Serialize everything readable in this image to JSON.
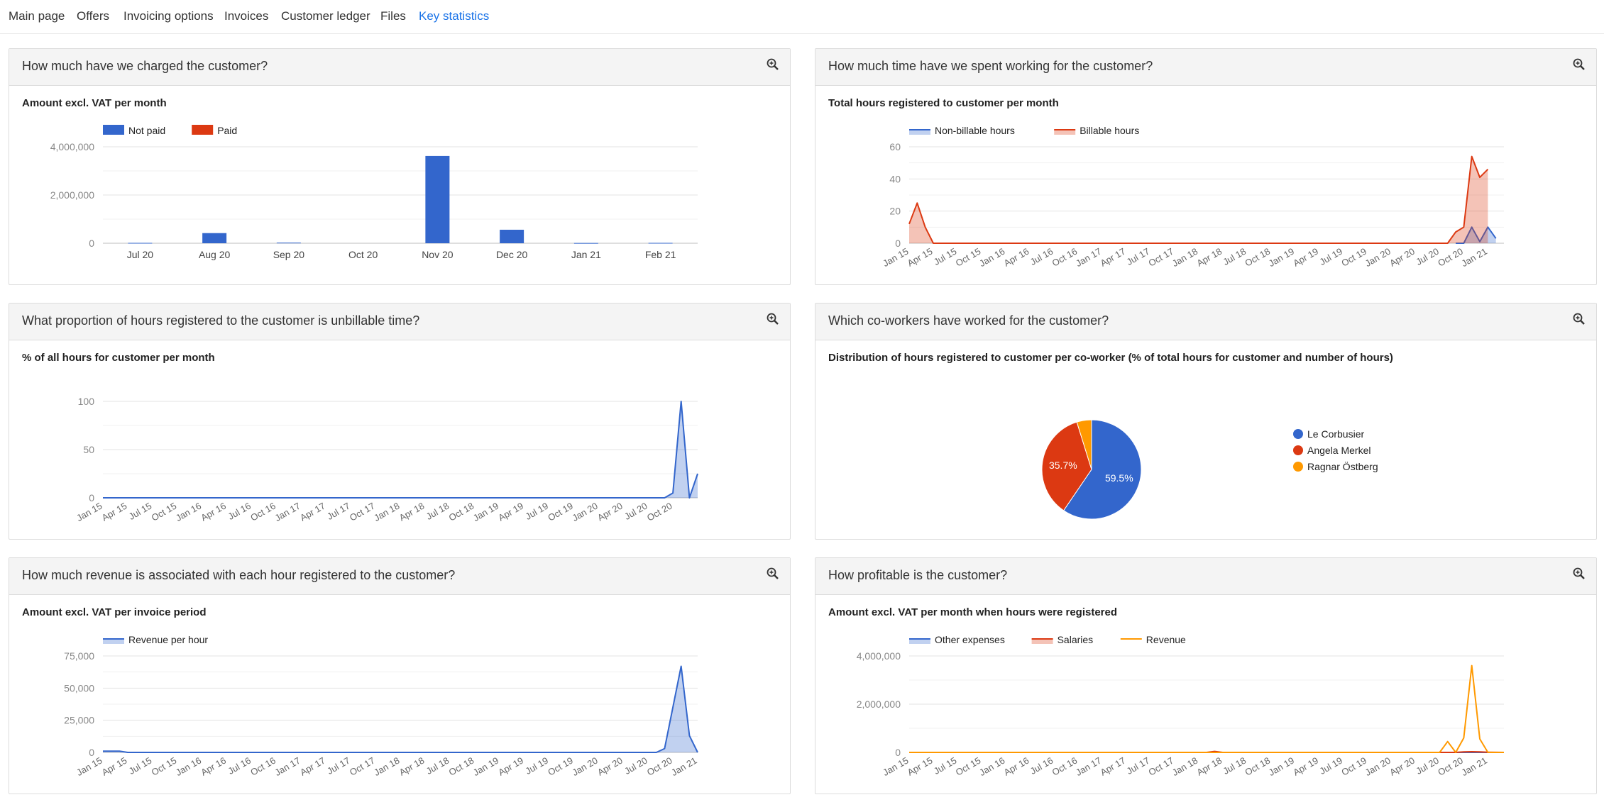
{
  "nav": {
    "items": [
      {
        "label": "Main page",
        "active": false
      },
      {
        "label": "Offers",
        "active": false
      },
      {
        "label": "Invoicing options",
        "active": false
      },
      {
        "label": "Invoices",
        "active": false
      },
      {
        "label": "Customer ledger",
        "active": false
      },
      {
        "label": "Files",
        "active": false
      },
      {
        "label": "Key statistics",
        "active": true
      }
    ]
  },
  "icons": {
    "zoom": "zoom-in-icon"
  },
  "colors": {
    "blue": "#3366cc",
    "red": "#dc3912",
    "orange": "#ff9900",
    "active_nav": "#1a73e8"
  },
  "cards": {
    "charged": {
      "title": "How much have we charged the customer?",
      "subtitle": "Amount excl. VAT per month"
    },
    "time": {
      "title": "How much time have we spent working for the customer?",
      "subtitle": "Total hours registered to customer per month"
    },
    "unbillable": {
      "title": "What proportion of hours registered to the customer is unbillable time?",
      "subtitle": "% of all hours for customer per month"
    },
    "coworkers": {
      "title": "Which co-workers have worked for the customer?",
      "subtitle": "Distribution of hours registered to customer per co-worker (% of total hours for customer and number of hours)"
    },
    "revenue_hour": {
      "title": "How much revenue is associated with each hour registered to the customer?",
      "subtitle": "Amount excl. VAT per invoice period"
    },
    "profitable": {
      "title": "How profitable is the customer?",
      "subtitle": "Amount excl. VAT per month when hours were registered"
    }
  },
  "chart_data": [
    {
      "id": "charged",
      "type": "bar",
      "stacked": true,
      "categories": [
        "Jul 20",
        "Aug 20",
        "Sep 20",
        "Oct 20",
        "Nov 20",
        "Dec 20",
        "Jan 21",
        "Feb 21"
      ],
      "series": [
        {
          "name": "Not paid",
          "color": "#3366cc",
          "values": [
            15000,
            420000,
            25000,
            0,
            3620000,
            560000,
            10000,
            15000
          ]
        },
        {
          "name": "Paid",
          "color": "#dc3912",
          "values": [
            0,
            0,
            0,
            0,
            0,
            0,
            0,
            0
          ]
        }
      ],
      "ylim": [
        0,
        4000000
      ],
      "yticks": [
        "4,000,000",
        "2,000,000",
        "0"
      ],
      "legend": "top"
    },
    {
      "id": "time",
      "type": "area",
      "xticks": [
        "Jan 15",
        "Apr 15",
        "Jul 15",
        "Oct 15",
        "Jan 16",
        "Apr 16",
        "Jul 16",
        "Oct 16",
        "Jan 17",
        "Apr 17",
        "Jul 17",
        "Oct 17",
        "Jan 18",
        "Apr 18",
        "Jul 18",
        "Oct 18",
        "Jan 19",
        "Apr 19",
        "Jul 19",
        "Oct 19",
        "Jan 20",
        "Apr 20",
        "Jul 20",
        "Oct 20",
        "Jan 21"
      ],
      "months": 75,
      "series": [
        {
          "name": "Non-billable hours",
          "color": "#3366cc",
          "points": [
            [
              68,
              0
            ],
            [
              69,
              0
            ],
            [
              70,
              10
            ],
            [
              71,
              1
            ],
            [
              72,
              10
            ],
            [
              73,
              3
            ]
          ]
        },
        {
          "name": "Billable hours",
          "color": "#dc3912",
          "points": [
            [
              0,
              12
            ],
            [
              1,
              25
            ],
            [
              2,
              10
            ],
            [
              3,
              0
            ],
            [
              67,
              0
            ],
            [
              68,
              7
            ],
            [
              69,
              10
            ],
            [
              70,
              54
            ],
            [
              71,
              41
            ],
            [
              72,
              46
            ]
          ]
        }
      ],
      "ylim": [
        0,
        60
      ],
      "yticks": [
        "60",
        "40",
        "20",
        "0"
      ],
      "legend": "top"
    },
    {
      "id": "unbillable",
      "type": "area",
      "xticks": [
        "Jan 15",
        "Apr 15",
        "Jul 15",
        "Oct 15",
        "Jan 16",
        "Apr 16",
        "Jul 16",
        "Oct 16",
        "Jan 17",
        "Apr 17",
        "Jul 17",
        "Oct 17",
        "Jan 18",
        "Apr 18",
        "Jul 18",
        "Oct 18",
        "Jan 19",
        "Apr 19",
        "Jul 19",
        "Oct 19",
        "Jan 20",
        "Apr 20",
        "Jul 20",
        "Oct 20"
      ],
      "months": 73,
      "series": [
        {
          "name": "",
          "color": "#3366cc",
          "points": [
            [
              0,
              0
            ],
            [
              68,
              0
            ],
            [
              69,
              5
            ],
            [
              70,
              100
            ],
            [
              71,
              0
            ],
            [
              72,
              25
            ]
          ]
        }
      ],
      "ylim": [
        0,
        100
      ],
      "yticks": [
        "100",
        "50",
        "0"
      ]
    },
    {
      "id": "coworkers",
      "type": "pie",
      "slices": [
        {
          "name": "Le Corbusier",
          "value": 59.5,
          "label": "59.5%",
          "color": "#3366cc"
        },
        {
          "name": "Angela Merkel",
          "value": 35.7,
          "label": "35.7%",
          "color": "#dc3912"
        },
        {
          "name": "Ragnar Östberg",
          "value": 4.8,
          "label": "",
          "color": "#ff9900"
        }
      ],
      "legend": "right"
    },
    {
      "id": "revenue_hour",
      "type": "area",
      "xticks": [
        "Jan 15",
        "Apr 15",
        "Jul 15",
        "Oct 15",
        "Jan 16",
        "Apr 16",
        "Jul 16",
        "Oct 16",
        "Jan 17",
        "Apr 17",
        "Jul 17",
        "Oct 17",
        "Jan 18",
        "Apr 18",
        "Jul 18",
        "Oct 18",
        "Jan 19",
        "Apr 19",
        "Jul 19",
        "Oct 19",
        "Jan 20",
        "Apr 20",
        "Jul 20",
        "Oct 20",
        "Jan 21"
      ],
      "months": 73,
      "series": [
        {
          "name": "Revenue per hour",
          "color": "#3366cc",
          "points": [
            [
              0,
              1000
            ],
            [
              2,
              1000
            ],
            [
              3,
              0
            ],
            [
              67,
              0
            ],
            [
              68,
              3000
            ],
            [
              70,
              67000
            ],
            [
              71,
              13000
            ],
            [
              72,
              0
            ]
          ]
        }
      ],
      "ylim": [
        0,
        75000
      ],
      "yticks": [
        "75,000",
        "50,000",
        "25,000",
        "0"
      ],
      "legend": "top"
    },
    {
      "id": "profitable",
      "type": "line",
      "xticks": [
        "Jan 15",
        "Apr 15",
        "Jul 15",
        "Oct 15",
        "Jan 16",
        "Apr 16",
        "Jul 16",
        "Oct 16",
        "Jan 17",
        "Apr 17",
        "Jul 17",
        "Oct 17",
        "Jan 18",
        "Apr 18",
        "Jul 18",
        "Oct 18",
        "Jan 19",
        "Apr 19",
        "Jul 19",
        "Oct 19",
        "Jan 20",
        "Apr 20",
        "Jul 20",
        "Oct 20",
        "Jan 21"
      ],
      "months": 75,
      "series": [
        {
          "name": "Other expenses",
          "color": "#3366cc",
          "area": true,
          "points": [
            [
              0,
              0
            ],
            [
              74,
              0
            ]
          ]
        },
        {
          "name": "Salaries",
          "color": "#dc3912",
          "area": true,
          "points": [
            [
              0,
              0
            ],
            [
              37,
              0
            ],
            [
              38,
              40000
            ],
            [
              39,
              0
            ],
            [
              68,
              0
            ],
            [
              69,
              20000
            ],
            [
              70,
              30000
            ],
            [
              71,
              20000
            ],
            [
              72,
              10000
            ],
            [
              74,
              0
            ]
          ]
        },
        {
          "name": "Revenue",
          "color": "#ff9900",
          "area": false,
          "points": [
            [
              0,
              0
            ],
            [
              66,
              0
            ],
            [
              67,
              450000
            ],
            [
              68,
              0
            ],
            [
              69,
              600000
            ],
            [
              70,
              3600000
            ],
            [
              71,
              560000
            ],
            [
              72,
              0
            ],
            [
              74,
              0
            ]
          ]
        }
      ],
      "ylim": [
        0,
        4000000
      ],
      "yticks": [
        "4,000,000",
        "2,000,000",
        "0"
      ],
      "legend": "top"
    }
  ]
}
